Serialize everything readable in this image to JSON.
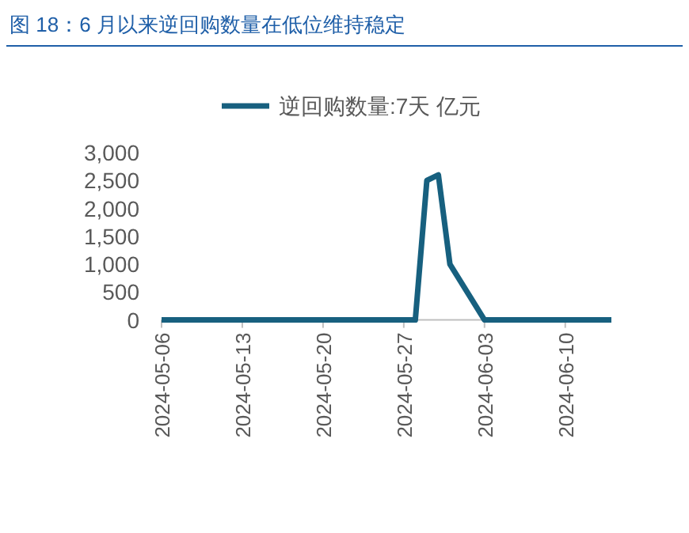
{
  "chart_data": {
    "type": "line",
    "title": "图 18：6 月以来逆回购数量在低位维持稳定",
    "x": [
      "2024-05-06",
      "2024-05-28",
      "2024-05-29",
      "2024-05-30",
      "2024-05-31",
      "2024-06-03",
      "2024-06-14"
    ],
    "series": [
      {
        "name": "逆回购数量:7天 亿元",
        "color": "#17607f",
        "values": [
          0,
          0,
          2500,
          2600,
          1000,
          0,
          0
        ]
      }
    ],
    "legend": "top",
    "xlim": [
      "2024-05-06",
      "2024-06-14"
    ],
    "xticks": [
      "2024-05-06",
      "2024-05-13",
      "2024-05-20",
      "2024-05-27",
      "2024-06-03",
      "2024-06-10"
    ],
    "ylim": [
      0,
      3000
    ],
    "yticks": [
      {
        "value": 0,
        "label": "0"
      },
      {
        "value": 500,
        "label": "500"
      },
      {
        "value": 1000,
        "label": "1,000"
      },
      {
        "value": 1500,
        "label": "1,500"
      },
      {
        "value": 2000,
        "label": "2,000"
      },
      {
        "value": 2500,
        "label": "2,500"
      },
      {
        "value": 3000,
        "label": "3,000"
      }
    ]
  }
}
